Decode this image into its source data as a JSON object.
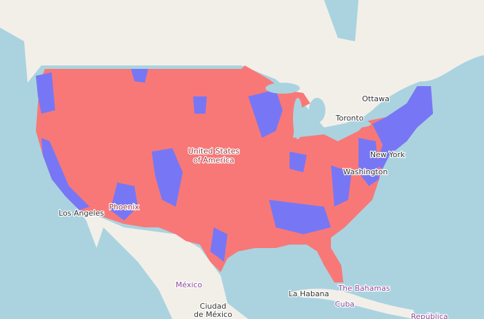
{
  "labels": [
    {
      "text": "Ottawa"
    },
    {
      "text": "Toronto"
    },
    {
      "text": "New York"
    },
    {
      "text": "Washington"
    },
    {
      "text": "United States"
    },
    {
      "text": "of America"
    },
    {
      "text": "Phoenix"
    },
    {
      "text": "Los Angeles"
    },
    {
      "text": "México"
    },
    {
      "text": "La Habana"
    },
    {
      "text": "The Bahamas"
    },
    {
      "text": "Cuba"
    },
    {
      "text": "Ciudad"
    },
    {
      "text": "de México"
    },
    {
      "text": "República"
    }
  ]
}
